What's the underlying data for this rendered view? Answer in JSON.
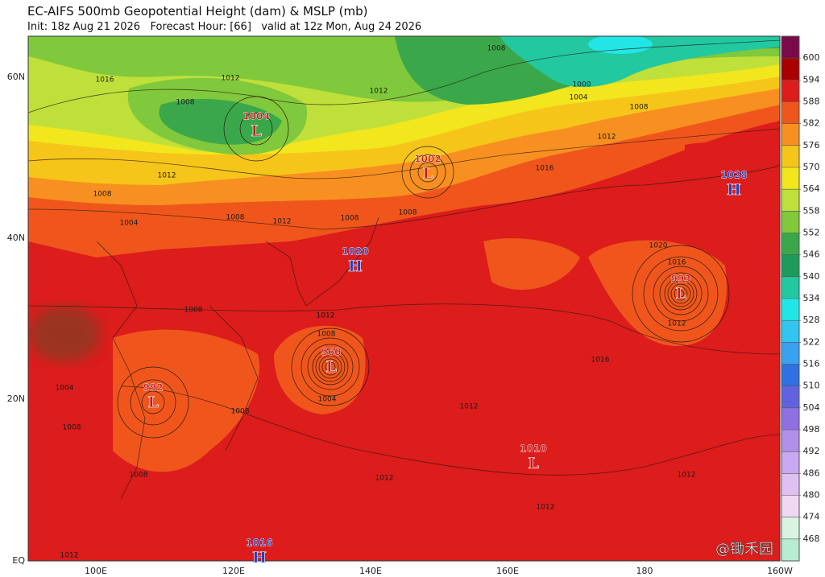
{
  "header": {
    "title": "EC-AIFS 500mb Geopotential Height (dam) & MSLP (mb)",
    "subtitle": "Init: 18z Aug 21 2026   Forecast Hour: [66]   valid at 12z Mon, Aug 24 2026"
  },
  "map": {
    "lat_labels": [
      "60N",
      "40N",
      "20N",
      "EQ"
    ],
    "lon_labels": [
      "100E",
      "120E",
      "140E",
      "160E",
      "180",
      "160W"
    ],
    "pressure_centers": [
      {
        "type": "L",
        "value": 1004
      },
      {
        "type": "L",
        "value": 1002
      },
      {
        "type": "H",
        "value": 1028
      },
      {
        "type": "H",
        "value": 1020
      },
      {
        "type": "L",
        "value": 960
      },
      {
        "type": "L",
        "value": 993
      },
      {
        "type": "L",
        "value": 992
      },
      {
        "type": "L",
        "value": 1010
      },
      {
        "type": "H",
        "value": 1016
      }
    ],
    "contour_labels": [
      1016,
      1012,
      1008,
      1012,
      1008,
      1000,
      1004,
      1008,
      1012,
      1016,
      1012,
      1008,
      1008,
      1012,
      1008,
      1008,
      1004,
      1020,
      1016,
      1012,
      1012,
      1008,
      1004,
      1008,
      1016,
      1012,
      1012,
      1012,
      1012,
      1008,
      1008,
      1008,
      1004,
      1012
    ]
  },
  "colorbar": {
    "levels": [
      600,
      594,
      588,
      582,
      576,
      570,
      564,
      558,
      552,
      546,
      540,
      534,
      528,
      522,
      516,
      510,
      504,
      498,
      492,
      486,
      480,
      474,
      468
    ],
    "colors": [
      "#7a0a4a",
      "#a80000",
      "#dd1c1c",
      "#f0561c",
      "#f79020",
      "#f6c51a",
      "#f2e61c",
      "#bfe03a",
      "#80c83c",
      "#3aa84a",
      "#1e9a5a",
      "#22c8a0",
      "#22e6e6",
      "#30c6f0",
      "#3aa0f0",
      "#3070e0",
      "#6262e0",
      "#9070e0",
      "#b090e8",
      "#c8a8f0",
      "#e0c0f2",
      "#f0d8f2",
      "#d8f4e0",
      "#b8ecd0"
    ]
  },
  "watermark": "@锄禾园"
}
